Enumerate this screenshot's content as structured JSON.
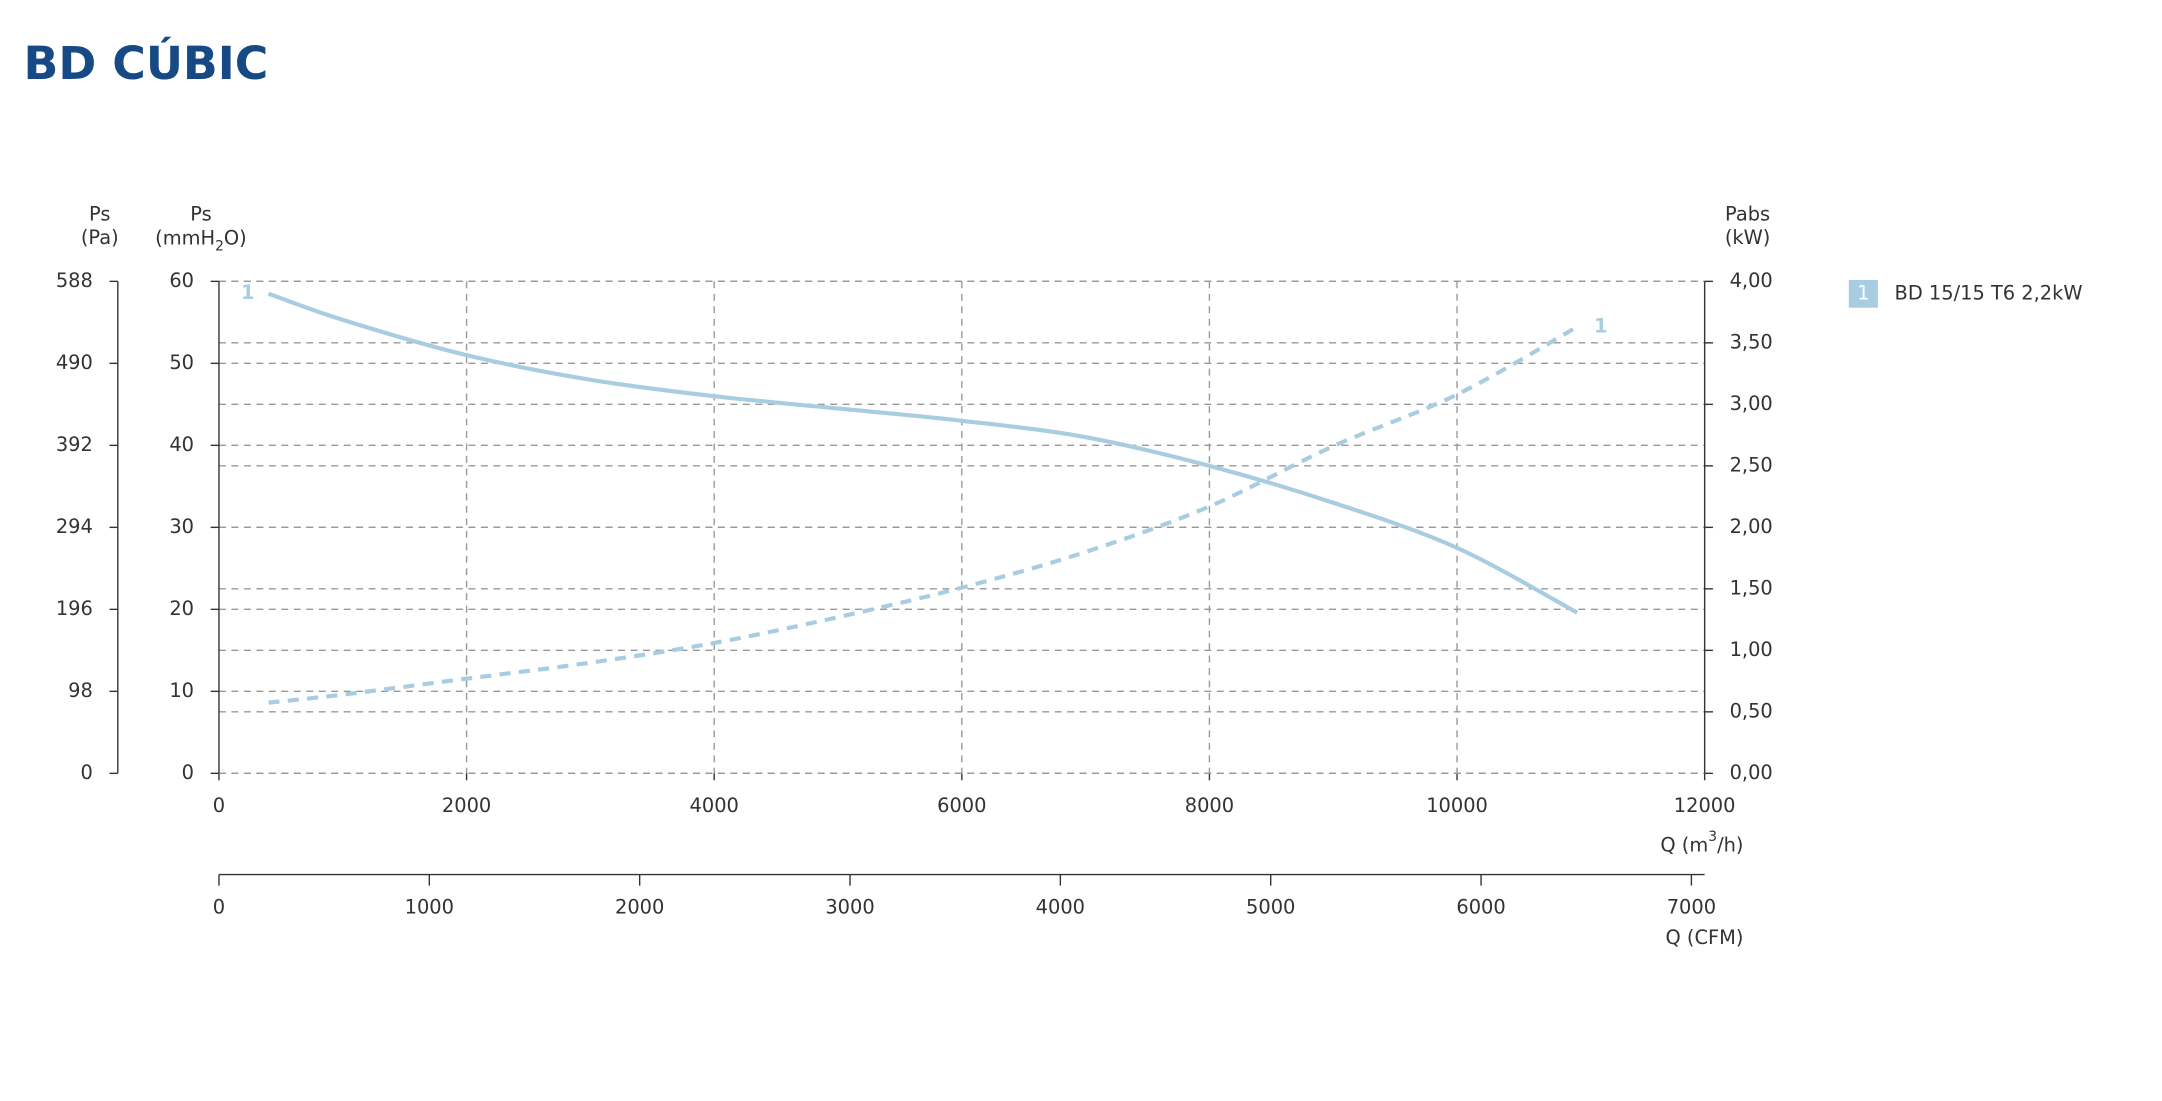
{
  "title": "BD CÚBIC",
  "chart_data": {
    "type": "line",
    "x": [
      400,
      1000,
      2000,
      3000,
      4000,
      5000,
      6000,
      7000,
      8000,
      9000,
      10000,
      10970
    ],
    "series": [
      {
        "name": "BD 15/15 T6 2,2kW",
        "label": "1",
        "color": "#a8cde0",
        "axis": "y",
        "dashed": false,
        "values": [
          58.5,
          55.3,
          51,
          48,
          46,
          44.5,
          43,
          41,
          37.5,
          33,
          27.5,
          19.6
        ]
      },
      {
        "label": "1",
        "color": "#a8cde0",
        "axis": "y2",
        "dashed": true,
        "values": [
          0.575,
          0.64,
          0.77,
          0.9,
          1.06,
          1.27,
          1.51,
          1.8,
          2.17,
          2.66,
          3.08,
          3.63
        ]
      }
    ],
    "xlabel": [
      "Q (m",
      "3",
      "/h)"
    ],
    "xlim": [
      0,
      12000
    ],
    "xticks": [
      0,
      2000,
      4000,
      6000,
      8000,
      10000,
      12000
    ],
    "x2label": "Q (CFM)",
    "x2lim": [
      0,
      7063
    ],
    "x2ticks": [
      0,
      1000,
      2000,
      3000,
      4000,
      5000,
      6000,
      7000
    ],
    "ylabel": [
      "Ps",
      "(mmH",
      "2",
      "O)"
    ],
    "ylim": [
      0,
      60
    ],
    "yticks": [
      0,
      10,
      20,
      30,
      40,
      50,
      60
    ],
    "ypa_label": [
      "Ps",
      "(Pa)"
    ],
    "ypa_lim": [
      0,
      588
    ],
    "ypa_ticks": [
      0,
      98,
      196,
      294,
      392,
      490,
      588
    ],
    "y2label": [
      "Pabs",
      "(kW)"
    ],
    "y2lim": [
      0,
      4
    ],
    "y2ticks": [
      {
        "value": 0,
        "label": "0,00"
      },
      {
        "value": 0.5,
        "label": "0,50"
      },
      {
        "value": 1,
        "label": "1,00"
      },
      {
        "value": 1.5,
        "label": "1,50"
      },
      {
        "value": 2,
        "label": "2,00"
      },
      {
        "value": 2.5,
        "label": "2,50"
      },
      {
        "value": 3,
        "label": "3,00"
      },
      {
        "value": 3.5,
        "label": "3,50"
      },
      {
        "value": 4,
        "label": "4,00"
      }
    ],
    "grid": true
  }
}
